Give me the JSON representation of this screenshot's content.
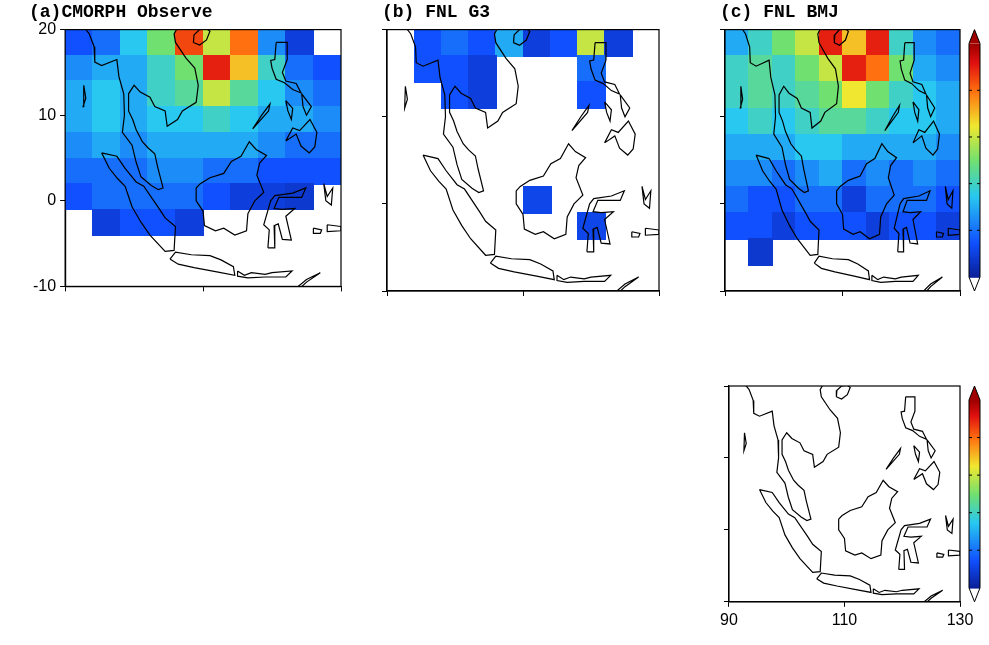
{
  "chart_data": [
    {
      "type": "map",
      "title": "(a)CMORPH Observe",
      "xlim": [
        90,
        130
      ],
      "ylim": [
        -10,
        20
      ],
      "xticks": [
        90,
        110,
        130
      ],
      "yticks": [
        -10,
        0,
        10,
        20
      ],
      "grid": false,
      "tick_labels": "y",
      "lon": [
        92,
        96,
        100,
        104,
        108,
        112,
        116,
        120,
        124,
        128
      ],
      "lat": [
        18.5,
        15.5,
        12.5,
        9.5,
        6.5,
        3.5,
        0.5,
        -2.5,
        -5.5,
        -8.5
      ],
      "cells": [
        [
          1.5,
          2,
          3.5,
          5,
          8.5,
          6,
          8,
          2.5,
          1,
          0
        ],
        [
          2.5,
          3,
          3,
          4,
          5,
          9,
          7,
          4,
          2,
          1.5
        ],
        [
          3,
          3.5,
          3,
          4,
          4.5,
          6,
          4.5,
          3.5,
          2.5,
          2
        ],
        [
          3,
          3.5,
          3,
          3.5,
          3.5,
          4,
          3.5,
          3,
          3,
          2.5
        ],
        [
          2.5,
          3,
          2.5,
          3,
          3,
          3,
          3,
          2.5,
          2,
          2
        ],
        [
          2,
          2,
          2,
          2.5,
          2.5,
          2,
          2,
          1.5,
          1.5,
          1.5
        ],
        [
          1.5,
          2,
          2,
          2,
          2,
          1.5,
          1,
          1,
          0.8,
          0
        ],
        [
          0,
          1,
          1.5,
          1.5,
          1,
          0,
          0,
          0,
          0,
          0
        ],
        [
          0,
          0,
          0,
          0,
          0,
          0,
          0,
          0,
          0,
          0
        ],
        [
          0,
          0,
          0,
          0,
          0,
          0,
          0,
          0,
          0,
          0
        ]
      ]
    },
    {
      "type": "map",
      "title": "(b) FNL G3",
      "xlim": [
        90,
        130
      ],
      "ylim": [
        -10,
        20
      ],
      "xticks": [
        90,
        110,
        130
      ],
      "yticks": [
        -10,
        0,
        10,
        20
      ],
      "grid": false,
      "tick_labels": false,
      "lon": [
        92,
        96,
        100,
        104,
        108,
        112,
        116,
        120,
        124,
        128
      ],
      "lat": [
        18.5,
        15.5,
        12.5,
        9.5,
        6.5,
        3.5,
        0.5,
        -2.5,
        -5.5,
        -8.5
      ],
      "cells": [
        [
          0,
          1.5,
          2,
          1.5,
          3,
          1,
          1.5,
          6,
          1,
          0
        ],
        [
          0,
          1.5,
          1.5,
          1,
          0,
          0,
          0,
          2,
          0,
          0
        ],
        [
          0,
          0,
          1.5,
          1,
          0,
          0,
          0,
          1.5,
          0,
          0
        ],
        [
          0,
          0,
          0,
          0,
          0,
          0,
          0,
          0,
          0,
          0
        ],
        [
          0,
          0,
          0,
          0,
          0,
          0,
          0,
          0,
          0,
          0
        ],
        [
          0,
          0,
          0,
          0,
          0,
          0,
          0,
          0,
          0,
          0
        ],
        [
          0,
          0,
          0,
          0,
          0,
          1.2,
          0,
          0,
          0,
          0
        ],
        [
          0,
          0,
          0,
          0,
          0,
          0,
          0,
          1.2,
          0,
          0
        ],
        [
          0,
          0,
          0,
          0,
          0,
          0,
          0,
          0,
          0,
          0
        ],
        [
          0,
          0,
          0,
          0,
          0,
          0,
          0,
          0,
          0,
          0
        ]
      ]
    },
    {
      "type": "map",
      "title": "(c) FNL BMJ",
      "xlim": [
        90,
        130
      ],
      "ylim": [
        -10,
        20
      ],
      "xticks": [
        90,
        110,
        130
      ],
      "yticks": [
        -10,
        0,
        10,
        20
      ],
      "grid": false,
      "tick_labels": false,
      "lon": [
        92,
        96,
        100,
        104,
        108,
        112,
        116,
        120,
        124,
        128
      ],
      "lat": [
        18.5,
        15.5,
        12.5,
        9.5,
        6.5,
        3.5,
        0.5,
        -2.5,
        -5.5,
        -8.5
      ],
      "cells": [
        [
          3,
          4,
          5,
          6,
          9,
          7,
          9,
          4,
          2.5,
          2
        ],
        [
          4,
          4.5,
          4,
          5,
          6,
          9,
          8,
          5,
          3,
          2.5
        ],
        [
          4,
          4.5,
          4,
          4.5,
          5,
          6.5,
          5,
          4,
          3.5,
          3
        ],
        [
          3.5,
          4,
          3.5,
          4,
          4.5,
          4.5,
          4,
          3.5,
          3.5,
          3
        ],
        [
          3,
          3,
          3,
          3.5,
          3.5,
          3,
          3,
          3,
          3,
          2.5
        ],
        [
          2.5,
          2.5,
          2,
          2.5,
          3,
          2,
          2.5,
          2,
          2.5,
          2
        ],
        [
          2,
          1.5,
          1.5,
          2,
          2,
          1,
          2,
          2,
          2,
          1.5
        ],
        [
          1.5,
          1.5,
          1,
          1.5,
          1.5,
          1.5,
          1,
          1.5,
          1.5,
          1
        ],
        [
          0,
          0.8,
          0,
          0,
          0,
          0,
          0,
          0,
          0,
          0
        ],
        [
          0,
          0,
          0,
          0,
          0,
          0,
          0,
          0,
          0,
          0
        ]
      ],
      "colorbar": {
        "range": [
          0,
          10
        ],
        "ticks": [
          2,
          4,
          6,
          8
        ]
      }
    },
    {
      "type": "map",
      "xlim": [
        90,
        130
      ],
      "ylim": [
        -10,
        20
      ],
      "xticks": [
        90,
        110,
        130
      ],
      "yticks": [
        -10,
        0,
        10,
        20
      ],
      "grid": false,
      "tick_labels": "x",
      "colorbar": {
        "range": [
          0,
          10
        ],
        "ticks": [
          2,
          4,
          6,
          8
        ]
      }
    }
  ],
  "coastlines": [
    [
      [
        92.3,
        20.7
      ],
      [
        93.5,
        19.5
      ],
      [
        94.2,
        18
      ],
      [
        94.3,
        16.2
      ],
      [
        95.3,
        15.8
      ],
      [
        97.5,
        16.5
      ],
      [
        97.8,
        14.5
      ],
      [
        98.5,
        12.5
      ],
      [
        98.6,
        10
      ],
      [
        98.3,
        8
      ],
      [
        99.7,
        6.5
      ],
      [
        100.3,
        4.5
      ],
      [
        101,
        2.8
      ],
      [
        102.5,
        1.8
      ],
      [
        103.5,
        1.3
      ],
      [
        104.2,
        1.5
      ],
      [
        103.4,
        4
      ],
      [
        103,
        5.5
      ],
      [
        102,
        6.2
      ],
      [
        101.2,
        6.9
      ],
      [
        100.3,
        8.3
      ],
      [
        99.8,
        9.5
      ],
      [
        99.2,
        10.5
      ],
      [
        99.2,
        12.5
      ],
      [
        100,
        13.5
      ],
      [
        100.9,
        12.7
      ],
      [
        102.3,
        12.1
      ],
      [
        103,
        11
      ],
      [
        104.5,
        10.5
      ],
      [
        104.8,
        8.7
      ],
      [
        106.3,
        9.5
      ],
      [
        107,
        10.5
      ],
      [
        109,
        11.5
      ],
      [
        109.3,
        13.5
      ],
      [
        108.8,
        15.5
      ],
      [
        107.5,
        16.7
      ],
      [
        106,
        18.5
      ],
      [
        105.8,
        19.5
      ],
      [
        106.5,
        20.5
      ],
      [
        107.5,
        21.5
      ]
    ],
    [
      [
        108.6,
        18.5
      ],
      [
        109.5,
        18.2
      ],
      [
        110.5,
        18.8
      ],
      [
        111,
        19.8
      ],
      [
        110.5,
        20.1
      ],
      [
        109.5,
        20
      ],
      [
        108.7,
        19.4
      ],
      [
        108.6,
        18.5
      ]
    ],
    [
      [
        120.6,
        18.5
      ],
      [
        122.2,
        18.5
      ],
      [
        122.2,
        16.5
      ],
      [
        121.5,
        15
      ],
      [
        122,
        14
      ],
      [
        123.5,
        13.7
      ],
      [
        124.2,
        12.6
      ],
      [
        123,
        13
      ],
      [
        121.8,
        13.8
      ],
      [
        120.6,
        14.2
      ],
      [
        120,
        15.5
      ],
      [
        119.8,
        16.4
      ],
      [
        120.4,
        16.5
      ],
      [
        120.6,
        18.5
      ]
    ],
    [
      [
        124.3,
        12.5
      ],
      [
        125.7,
        11
      ],
      [
        125,
        10
      ],
      [
        124.5,
        11
      ],
      [
        124.3,
        12.5
      ]
    ],
    [
      [
        122,
        11.7
      ],
      [
        123,
        10.8
      ],
      [
        122.8,
        9.5
      ],
      [
        122.3,
        10.5
      ],
      [
        122,
        11.7
      ]
    ],
    [
      [
        117.2,
        8.4
      ],
      [
        119.5,
        10.5
      ],
      [
        119.7,
        11.3
      ],
      [
        118.5,
        10
      ],
      [
        117.2,
        8.4
      ]
    ],
    [
      [
        122,
        7
      ],
      [
        123,
        8.5
      ],
      [
        124,
        8.2
      ],
      [
        125.5,
        9.5
      ],
      [
        126.5,
        8
      ],
      [
        126.2,
        6.3
      ],
      [
        125.4,
        5.6
      ],
      [
        124.2,
        6.4
      ],
      [
        123.5,
        7.8
      ],
      [
        122,
        7
      ]
    ],
    [
      [
        109,
        1.5
      ],
      [
        109.6,
        2
      ],
      [
        111,
        2.7
      ],
      [
        113,
        3.2
      ],
      [
        114.1,
        4.6
      ],
      [
        115.5,
        5.2
      ],
      [
        116.7,
        6.9
      ],
      [
        117.7,
        6
      ],
      [
        119.2,
        5.3
      ],
      [
        118.2,
        4.4
      ],
      [
        117.8,
        3
      ],
      [
        118.8,
        1
      ],
      [
        117.5,
        0
      ],
      [
        116.5,
        -1.5
      ],
      [
        116.3,
        -3.5
      ],
      [
        114.6,
        -4
      ],
      [
        113,
        -3.2
      ],
      [
        111.8,
        -3.5
      ],
      [
        110.2,
        -2.9
      ],
      [
        110,
        -1.2
      ],
      [
        109,
        0
      ],
      [
        109,
        1.5
      ]
    ],
    [
      [
        95.3,
        5.6
      ],
      [
        97.5,
        5.2
      ],
      [
        98.7,
        3.8
      ],
      [
        100.3,
        2.2
      ],
      [
        101.4,
        1.7
      ],
      [
        103.7,
        -1
      ],
      [
        104.5,
        -2
      ],
      [
        106,
        -3
      ],
      [
        105.8,
        -5.8
      ],
      [
        104.5,
        -5.9
      ],
      [
        102.3,
        -4
      ],
      [
        101,
        -2.5
      ],
      [
        99.7,
        -0.7
      ],
      [
        98.7,
        1.7
      ],
      [
        97.6,
        2.6
      ],
      [
        96.4,
        3.8
      ],
      [
        95.3,
        5.6
      ]
    ],
    [
      [
        105.2,
        -6.8
      ],
      [
        106,
        -6
      ],
      [
        108.3,
        -6.3
      ],
      [
        111,
        -6.4
      ],
      [
        112.6,
        -6.9
      ],
      [
        114.4,
        -7.7
      ],
      [
        114.6,
        -8.7
      ],
      [
        112,
        -8.3
      ],
      [
        108.7,
        -7.8
      ],
      [
        106.4,
        -7.4
      ],
      [
        105.2,
        -6.8
      ]
    ],
    [
      [
        115,
        -8.2
      ],
      [
        116,
        -8.7
      ],
      [
        117,
        -8.4
      ],
      [
        119,
        -8.6
      ],
      [
        120,
        -8.4
      ],
      [
        122.9,
        -8.2
      ],
      [
        122,
        -8.9
      ],
      [
        119,
        -8.9
      ],
      [
        116.5,
        -9
      ],
      [
        115,
        -8.8
      ],
      [
        115,
        -8.2
      ]
    ],
    [
      [
        123.5,
        -10.2
      ],
      [
        125,
        -9.2
      ],
      [
        127,
        -8.4
      ],
      [
        125,
        -9.5
      ],
      [
        123.8,
        -10.4
      ],
      [
        123.5,
        -10.2
      ]
    ],
    [
      [
        119.4,
        -5.5
      ],
      [
        119.6,
        -3.4
      ],
      [
        118.8,
        -2.8
      ],
      [
        119.8,
        0
      ],
      [
        120.4,
        0.6
      ],
      [
        123,
        0.9
      ],
      [
        124.9,
        1.5
      ],
      [
        124.3,
        0.4
      ],
      [
        121,
        0.4
      ],
      [
        120.3,
        -0.9
      ],
      [
        121.5,
        -1
      ],
      [
        123.3,
        -0.9
      ],
      [
        122,
        -1.8
      ],
      [
        122.8,
        -4.6
      ],
      [
        121.5,
        -4.5
      ],
      [
        120.9,
        -2.7
      ],
      [
        120.3,
        -2.9
      ],
      [
        120.4,
        -5.5
      ],
      [
        119.4,
        -5.5
      ]
    ],
    [
      [
        127.5,
        2
      ],
      [
        128,
        0.5
      ],
      [
        128.8,
        1.5
      ],
      [
        128.6,
        -0.5
      ],
      [
        127.8,
        0
      ],
      [
        127.5,
        2
      ]
    ],
    [
      [
        126,
        -3.2
      ],
      [
        127.2,
        -3.4
      ],
      [
        127,
        -3.8
      ],
      [
        126,
        -3.8
      ],
      [
        126,
        -3.2
      ]
    ],
    [
      [
        128,
        -2.8
      ],
      [
        130,
        -3
      ],
      [
        130,
        -3.5
      ],
      [
        128,
        -3.6
      ],
      [
        128,
        -2.8
      ]
    ],
    [
      [
        92.7,
        13.5
      ],
      [
        93,
        12
      ],
      [
        92.6,
        11
      ],
      [
        92.7,
        13.5
      ]
    ]
  ]
}
